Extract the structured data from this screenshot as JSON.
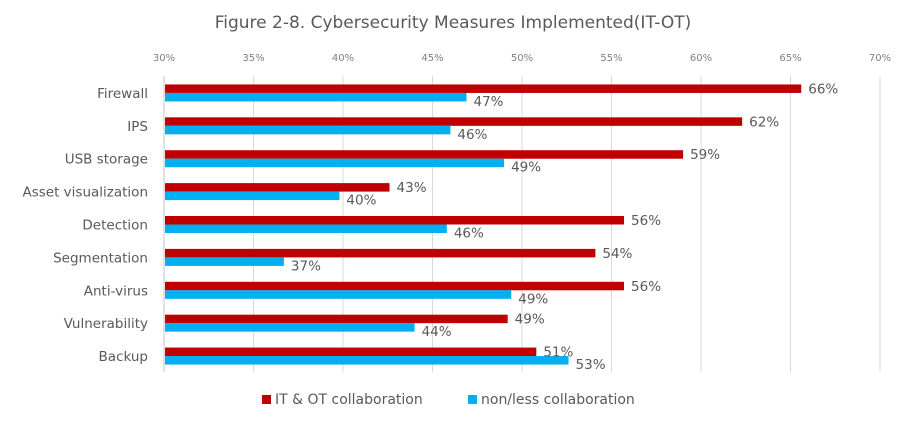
{
  "chart_data": {
    "type": "bar",
    "orientation": "horizontal",
    "title": "Figure 2-8. Cybersecurity Measures Implemented(IT-OT)",
    "xlabel": "",
    "ylabel": "",
    "xlim": [
      30,
      70
    ],
    "x_ticks": [
      "30%",
      "35%",
      "40%",
      "45%",
      "50%",
      "55%",
      "60%",
      "65%",
      "70%"
    ],
    "x_tick_values": [
      30,
      35,
      40,
      45,
      50,
      55,
      60,
      65,
      70
    ],
    "grid": true,
    "legend_position": "bottom",
    "categories": [
      "Firewall",
      "IPS",
      "USB storage",
      "Asset visualization",
      "Detection",
      "Segmentation",
      "Anti-virus ",
      "Vulnerability",
      "Backup"
    ],
    "series": [
      {
        "name": "IT & OT collaboration",
        "color": "#c00000",
        "values": [
          65.6,
          62.3,
          59,
          42.6,
          55.7,
          54.1,
          55.7,
          49.2,
          50.8
        ],
        "labels": [
          "66%",
          "62%",
          "59%",
          "43%",
          "56%",
          "54%",
          "56%",
          "49%",
          "51%"
        ]
      },
      {
        "name": "non/less collaboration",
        "color": "#00b0f0",
        "values": [
          46.9,
          46,
          49,
          39.8,
          45.8,
          36.7,
          49.4,
          44,
          52.6
        ],
        "labels": [
          "47%",
          "46%",
          "49%",
          "40%",
          "46%",
          "37%",
          "49%",
          "44%",
          "53%"
        ]
      }
    ]
  }
}
